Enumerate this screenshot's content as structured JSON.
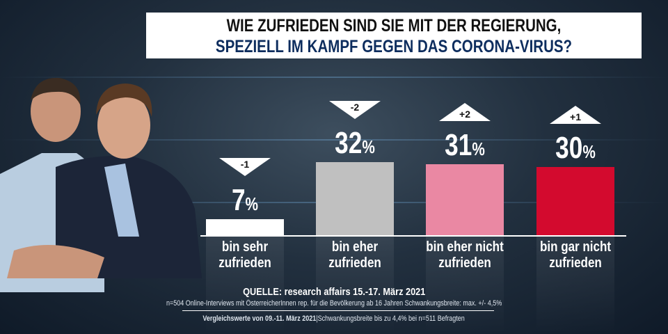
{
  "title": {
    "line1": "WIE ZUFRIEDEN SIND SIE MIT DER REGIERUNG,",
    "line2": "SPEZIELL IM KAMPF GEGEN DAS CORONA-VIRUS?"
  },
  "chart_data": {
    "type": "bar",
    "title": "WIE ZUFRIEDEN SIND SIE MIT DER REGIERUNG, SPEZIELL IM KAMPF GEGEN DAS CORONA-VIRUS?",
    "categories": [
      "bin sehr zufrieden",
      "bin eher zufrieden",
      "bin eher nicht zufrieden",
      "bin gar nicht zufrieden"
    ],
    "label_lines": [
      [
        "bin sehr",
        "zufrieden"
      ],
      [
        "bin eher",
        "zufrieden"
      ],
      [
        "bin eher nicht",
        "zufrieden"
      ],
      [
        "bin gar nicht",
        "zufrieden"
      ]
    ],
    "values": [
      7,
      32,
      31,
      30
    ],
    "value_labels": [
      "7",
      "32",
      "31",
      "30"
    ],
    "unit": "%",
    "changes": [
      "-1",
      "-2",
      "+2",
      "+1"
    ],
    "change_direction": [
      "down",
      "down",
      "up",
      "up"
    ],
    "colors": [
      "#ffffff",
      "#c0c0c0",
      "#ea88a3",
      "#d30a2e"
    ],
    "ylim": [
      0,
      35
    ],
    "grid": false,
    "legend": "none"
  },
  "footer": {
    "source": "QUELLE: research affairs 15.-17. März 2021",
    "method": "n=504 Online-Interviews mit ÖsterreicherInnen rep. für die Bevölkerung ab 16 Jahren  Schwankungsbreite: max. +/- 4,5%",
    "compare_bold": "Vergleichswerte von 09.-11. März 2021",
    "compare_rest": "|Schwankungsbreite bis zu 4,4% bei n=511 Befragten"
  }
}
